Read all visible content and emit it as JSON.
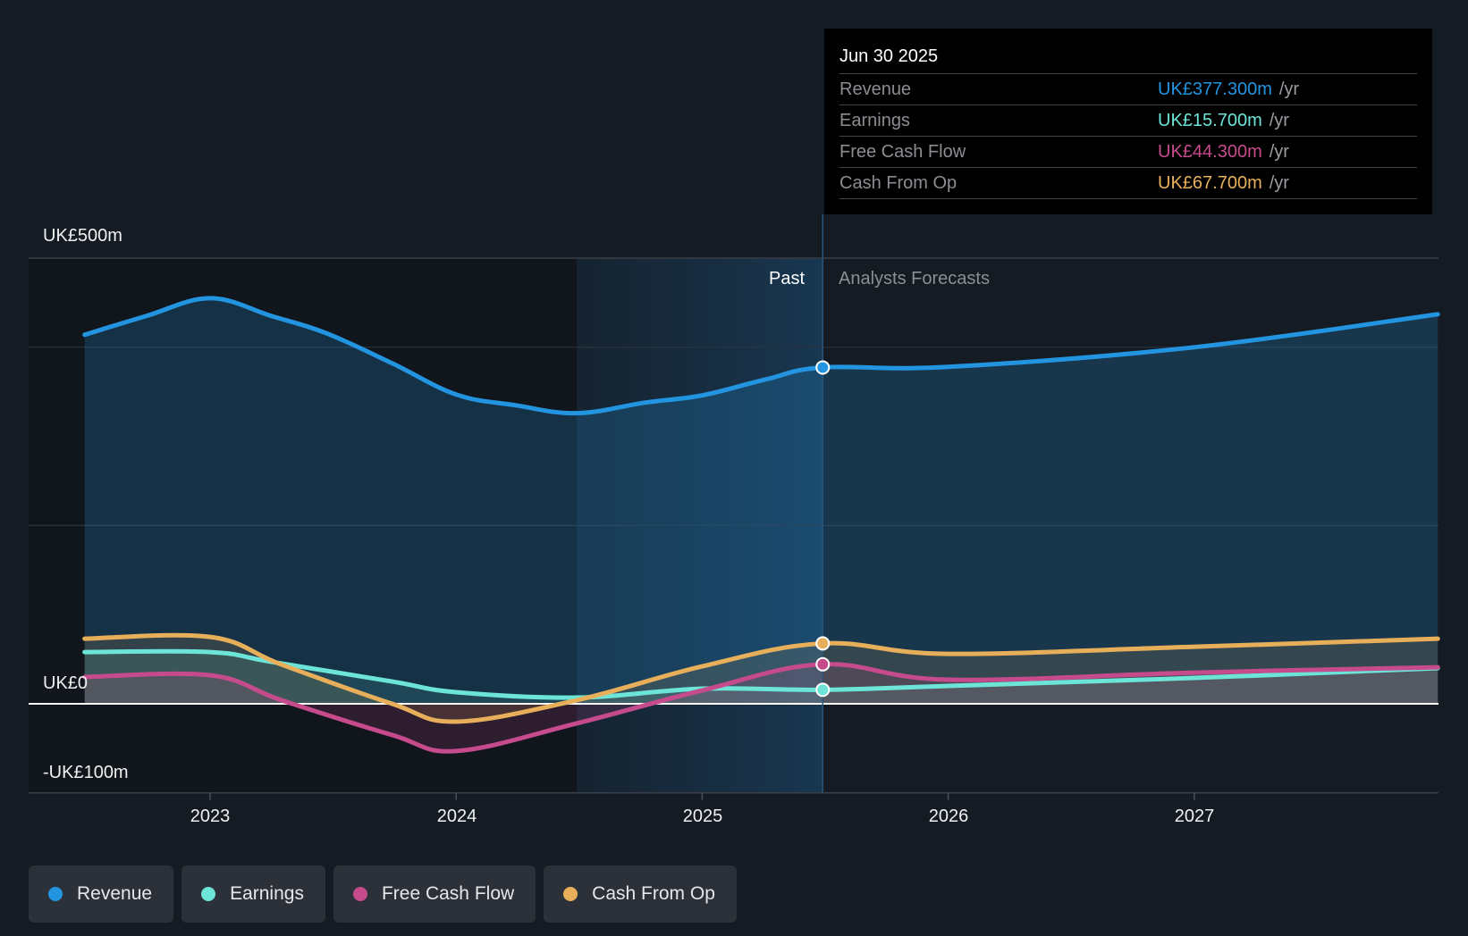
{
  "tooltip": {
    "date": "Jun 30 2025",
    "rows": [
      {
        "label": "Revenue",
        "value": "UK£377.300m",
        "unit": "/yr",
        "color": "#2394df"
      },
      {
        "label": "Earnings",
        "value": "UK£15.700m",
        "unit": "/yr",
        "color": "#6ce5d8"
      },
      {
        "label": "Free Cash Flow",
        "value": "UK£44.300m",
        "unit": "/yr",
        "color": "#c64b8c"
      },
      {
        "label": "Cash From Op",
        "value": "UK£67.700m",
        "unit": "/yr",
        "color": "#e8af5b"
      }
    ]
  },
  "sections": {
    "past": "Past",
    "forecast": "Analysts Forecasts"
  },
  "legend": [
    {
      "label": "Revenue",
      "color": "#2394df"
    },
    {
      "label": "Earnings",
      "color": "#6ce5d8"
    },
    {
      "label": "Free Cash Flow",
      "color": "#c64b8c"
    },
    {
      "label": "Cash From Op",
      "color": "#e8af5b"
    }
  ],
  "chart_data": {
    "type": "line",
    "title": "",
    "xlabel": "",
    "ylabel": "",
    "xlim": [
      2022.49,
      2027.99
    ],
    "ylim": [
      -100,
      500
    ],
    "y_ticks": [
      {
        "value": 500,
        "label": "UK£500m"
      },
      {
        "value": 0,
        "label": "UK£0"
      },
      {
        "value": -100,
        "label": "-UK£100m"
      }
    ],
    "gridlines": [
      500,
      400,
      200,
      0,
      -100
    ],
    "x_ticks": [
      {
        "value": 2023,
        "label": "2023"
      },
      {
        "value": 2024,
        "label": "2024"
      },
      {
        "value": 2025,
        "label": "2025"
      },
      {
        "value": 2026,
        "label": "2026"
      },
      {
        "value": 2027,
        "label": "2027"
      }
    ],
    "past_region": [
      2024.49,
      2025.49
    ],
    "forecast_start": 2025.49,
    "highlight_x": 2025.49,
    "series": [
      {
        "name": "Revenue",
        "color": "#2394df",
        "x": [
          2022.49,
          2022.74,
          2023.0,
          2023.25,
          2023.47,
          2023.74,
          2024.0,
          2024.24,
          2024.49,
          2024.77,
          2025.0,
          2025.26,
          2025.49,
          2026.0,
          2027.0,
          2027.99
        ],
        "y": [
          414,
          435,
          455,
          435,
          416,
          382,
          347,
          335,
          326,
          338,
          346,
          364,
          377.3,
          378,
          400,
          437
        ]
      },
      {
        "name": "Earnings",
        "color": "#6ce5d8",
        "x": [
          2022.49,
          2023.0,
          2023.25,
          2023.74,
          2024.0,
          2024.49,
          2025.0,
          2025.49,
          2026.0,
          2027.0,
          2027.99
        ],
        "y": [
          58,
          58,
          47,
          25,
          13,
          7,
          17,
          15.7,
          20,
          29,
          40
        ]
      },
      {
        "name": "Free Cash Flow",
        "color": "#c64b8c",
        "x": [
          2022.49,
          2023.0,
          2023.29,
          2023.74,
          2024.0,
          2024.49,
          2025.0,
          2025.49,
          2026.0,
          2027.0,
          2027.99
        ],
        "y": [
          30,
          32,
          4,
          -35,
          -53,
          -22,
          15,
          44.3,
          27,
          35,
          41
        ]
      },
      {
        "name": "Cash From Op",
        "color": "#e8af5b",
        "x": [
          2022.49,
          2023.0,
          2023.29,
          2023.74,
          2024.0,
          2024.49,
          2025.0,
          2025.49,
          2026.0,
          2027.0,
          2027.99
        ],
        "y": [
          73,
          75,
          44,
          0,
          -20,
          4,
          42,
          67.7,
          56,
          64,
          73
        ]
      }
    ]
  }
}
